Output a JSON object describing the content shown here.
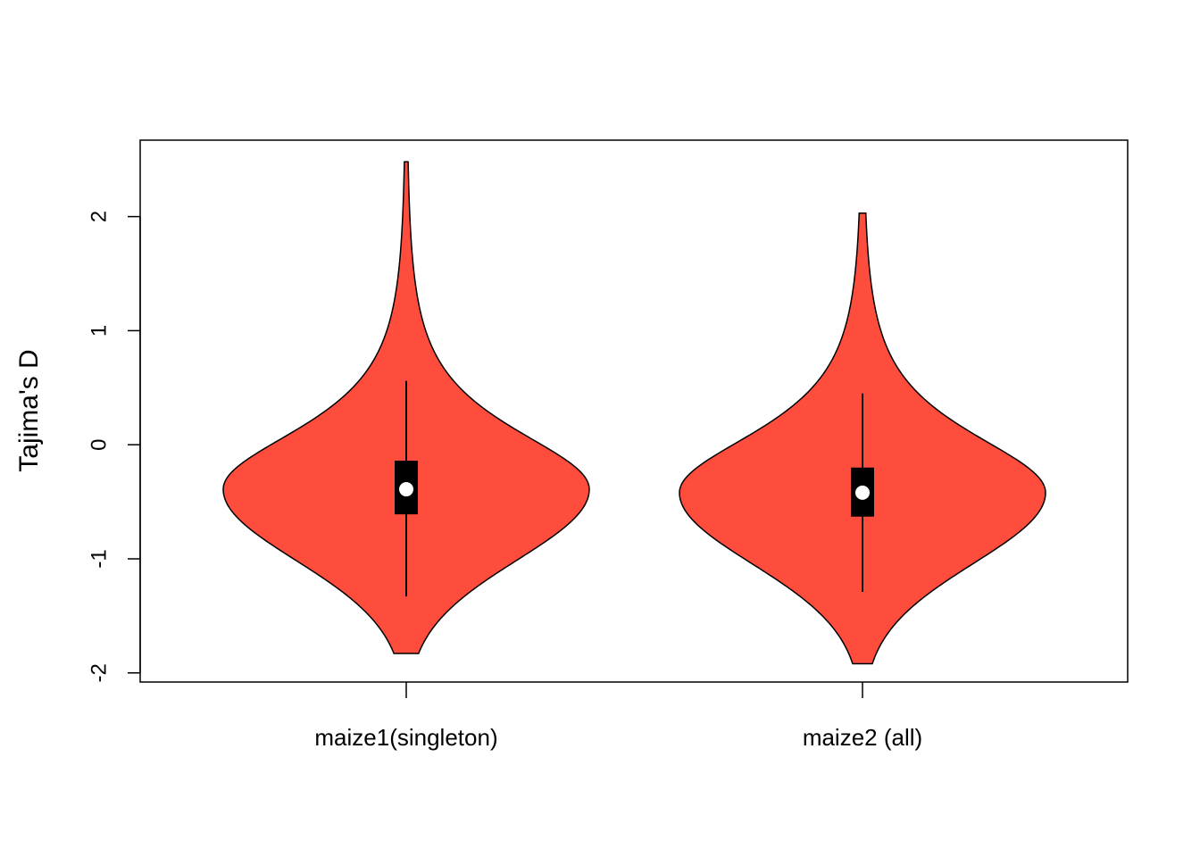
{
  "chart_data": {
    "type": "violin",
    "ylabel": "Tajima's D",
    "ylim": [
      -2.08,
      2.67
    ],
    "yticks": [
      -2,
      -1,
      0,
      1,
      2
    ],
    "ytick_labels": [
      "-2",
      "-1",
      "0",
      "1",
      "2"
    ],
    "categories": [
      "maize1(singleton)",
      "maize2 (all)"
    ],
    "violins": [
      {
        "label": "maize1(singleton)",
        "color": "#FF4D3D",
        "min": -1.83,
        "max": 2.48,
        "whisker_low": -1.33,
        "whisker_high": 0.56,
        "q1": -0.61,
        "median": -0.39,
        "q3": -0.14,
        "density_mode": -0.39,
        "density_sd": 0.62,
        "density_tail": 0.9
      },
      {
        "label": "maize2 (all)",
        "color": "#FF4D3D",
        "min": -1.92,
        "max": 2.03,
        "whisker_low": -1.29,
        "whisker_high": 0.45,
        "q1": -0.63,
        "median": -0.42,
        "q3": -0.2,
        "density_mode": -0.42,
        "density_sd": 0.62,
        "density_tail": 0.9
      }
    ],
    "grid": false,
    "legend": "none"
  }
}
